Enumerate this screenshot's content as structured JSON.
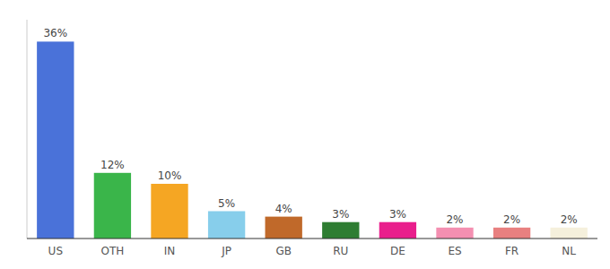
{
  "chart_data": {
    "type": "bar",
    "categories": [
      "US",
      "OTH",
      "IN",
      "JP",
      "GB",
      "RU",
      "DE",
      "ES",
      "FR",
      "NL"
    ],
    "values": [
      36,
      12,
      10,
      5,
      4,
      3,
      3,
      2,
      2,
      2
    ],
    "value_labels": [
      "36%",
      "12%",
      "10%",
      "5%",
      "4%",
      "3%",
      "3%",
      "2%",
      "2%",
      "2%"
    ],
    "colors": [
      "#4a72d9",
      "#3ab54a",
      "#f5a623",
      "#87ceeb",
      "#c0692a",
      "#2e7d32",
      "#e91e8c",
      "#f48fb1",
      "#e88080",
      "#f5f0dc"
    ],
    "ylim": [
      0,
      40
    ],
    "data_labels": true,
    "tick_labels": "x",
    "grid": false
  }
}
